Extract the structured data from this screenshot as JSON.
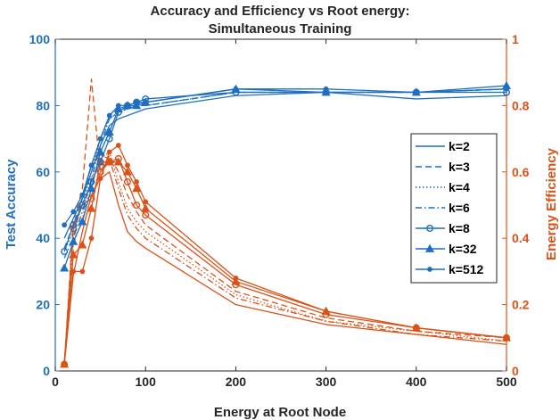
{
  "chart_data": {
    "type": "line",
    "title_line1": "Accuracy and Efficiency vs Root energy:",
    "title_line2": "Simultaneous Training",
    "xlabel": "Energy at Root Node",
    "ylabel_left": "Test Accuracy",
    "ylabel_right": "Energy Efficiency",
    "xlim": [
      0,
      500
    ],
    "ylim_left": [
      0,
      100
    ],
    "ylim_right": [
      0,
      1
    ],
    "xticks": [
      0,
      100,
      200,
      300,
      400,
      500
    ],
    "yticks_left": [
      0,
      20,
      40,
      60,
      80,
      100
    ],
    "yticks_right": [
      0,
      0.2,
      0.4,
      0.6,
      0.8,
      1
    ],
    "grid": false,
    "legend_position": "right",
    "colors": {
      "accuracy": "#1f6fbf",
      "efficiency": "#d95319",
      "text": "#262626"
    },
    "x": [
      10,
      20,
      30,
      40,
      50,
      60,
      70,
      80,
      90,
      100,
      200,
      300,
      400,
      500
    ],
    "series": [
      {
        "name": "k=2",
        "style": "solid",
        "marker": "none",
        "accuracy": [
          40,
          46,
          52,
          60,
          68,
          74,
          76,
          77,
          78,
          79,
          83,
          84,
          82,
          83
        ],
        "efficiency": [
          0.02,
          0.29,
          0.42,
          0.53,
          0.58,
          0.6,
          0.5,
          0.42,
          0.39,
          0.37,
          0.2,
          0.14,
          0.11,
          0.08
        ]
      },
      {
        "name": "k=3",
        "style": "dashed",
        "marker": "none",
        "accuracy": [
          37,
          44,
          52,
          62,
          70,
          77,
          79,
          79,
          80,
          80,
          84,
          84,
          84,
          85
        ],
        "efficiency": [
          0.02,
          0.45,
          0.55,
          0.88,
          0.6,
          0.65,
          0.6,
          0.53,
          0.48,
          0.44,
          0.24,
          0.16,
          0.12,
          0.1
        ]
      },
      {
        "name": "k=4",
        "style": "dotted",
        "marker": "none",
        "accuracy": [
          36,
          42,
          50,
          60,
          70,
          76,
          78,
          79,
          80,
          80,
          84,
          84,
          84,
          84
        ],
        "efficiency": [
          0.02,
          0.38,
          0.46,
          0.58,
          0.64,
          0.66,
          0.57,
          0.49,
          0.45,
          0.42,
          0.23,
          0.15,
          0.12,
          0.09
        ]
      },
      {
        "name": "k=6",
        "style": "dashdot",
        "marker": "none",
        "accuracy": [
          34,
          40,
          48,
          58,
          68,
          76,
          78,
          79,
          80,
          80,
          84,
          84,
          84,
          85
        ],
        "efficiency": [
          0.02,
          0.4,
          0.52,
          0.62,
          0.65,
          0.64,
          0.55,
          0.47,
          0.43,
          0.4,
          0.22,
          0.15,
          0.11,
          0.09
        ]
      },
      {
        "name": "k=8",
        "style": "solid",
        "marker": "circle",
        "accuracy": [
          36,
          44,
          50,
          57,
          63,
          70,
          78,
          80,
          81,
          82,
          84,
          84,
          84,
          84
        ],
        "efficiency": [
          0.02,
          0.43,
          0.5,
          0.52,
          0.6,
          0.63,
          0.64,
          0.57,
          0.5,
          0.47,
          0.26,
          0.17,
          0.13,
          0.1
        ]
      },
      {
        "name": "k=32",
        "style": "solid",
        "marker": "triangle",
        "accuracy": [
          31,
          39,
          45,
          55,
          66,
          72,
          79,
          80,
          80,
          81,
          85,
          84,
          84,
          86
        ],
        "efficiency": [
          0.02,
          0.35,
          0.38,
          0.49,
          0.63,
          0.63,
          0.63,
          0.6,
          0.55,
          0.49,
          0.27,
          0.18,
          0.13,
          0.1
        ]
      },
      {
        "name": "k=512",
        "style": "solid",
        "marker": "dot",
        "accuracy": [
          44,
          48,
          53,
          62,
          70,
          77,
          80,
          80,
          81,
          81,
          85,
          85,
          84,
          85
        ],
        "efficiency": [
          0.02,
          0.3,
          0.3,
          0.4,
          0.58,
          0.66,
          0.68,
          0.62,
          0.57,
          0.51,
          0.28,
          0.18,
          0.13,
          0.1
        ]
      }
    ]
  }
}
